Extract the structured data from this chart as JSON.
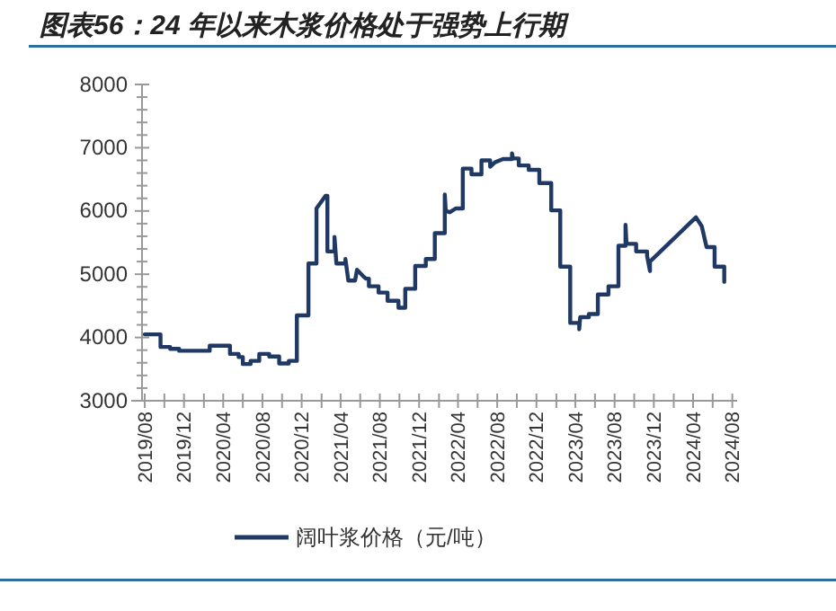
{
  "chart_data": {
    "type": "line",
    "title": "图表56：24 年以来木浆价格处于强势上行期",
    "series": [
      {
        "name": "阔叶浆价格（元/吨）",
        "color": "#1f3864",
        "x": [
          "2019-08-01",
          "2019-09-19",
          "2019-09-19",
          "2019-10-19",
          "2019-10-19",
          "2019-11-16",
          "2019-11-16",
          "2020-02-19",
          "2020-02-19",
          "2020-04-22",
          "2020-04-22",
          "2020-05-19",
          "2020-05-19",
          "2020-06-01",
          "2020-06-01",
          "2020-06-25",
          "2020-06-25",
          "2020-07-22",
          "2020-07-22",
          "2020-08-22",
          "2020-08-22",
          "2020-09-22",
          "2020-09-22",
          "2020-10-22",
          "2020-10-22",
          "2020-11-16",
          "2020-11-16",
          "2020-12-22",
          "2020-12-22",
          "2021-01-16",
          "2021-01-16",
          "2021-02-13",
          "2021-02-19",
          "2021-02-19",
          "2021-03-13",
          "2021-03-13",
          "2021-03-19",
          "2021-04-16",
          "2021-04-16",
          "2021-04-25",
          "2021-05-16",
          "2021-05-22",
          "2021-06-10",
          "2021-06-19",
          "2021-06-28",
          "2021-06-28",
          "2021-07-28",
          "2021-07-28",
          "2021-08-25",
          "2021-08-25",
          "2021-09-28",
          "2021-09-28",
          "2021-10-19",
          "2021-10-19",
          "2021-11-19",
          "2021-11-19",
          "2021-12-22",
          "2021-12-22",
          "2022-01-19",
          "2022-01-19",
          "2022-02-19",
          "2022-02-19",
          "2022-02-22",
          "2022-03-07",
          "2022-03-25",
          "2022-04-16",
          "2022-04-16",
          "2022-05-13",
          "2022-05-13",
          "2022-06-13",
          "2022-06-13",
          "2022-07-10",
          "2022-07-10",
          "2022-07-25",
          "2022-08-19",
          "2022-09-16",
          "2022-09-16",
          "2022-09-19",
          "2022-10-07",
          "2022-10-07",
          "2022-11-07",
          "2022-11-07",
          "2022-12-10",
          "2022-12-10",
          "2023-01-16",
          "2023-01-16",
          "2023-02-13",
          "2023-02-13",
          "2023-03-16",
          "2023-03-16",
          "2023-04-13",
          "2023-04-13",
          "2023-04-16",
          "2023-05-13",
          "2023-05-13",
          "2023-06-10",
          "2023-06-10",
          "2023-07-13",
          "2023-07-13",
          "2023-08-13",
          "2023-08-13",
          "2023-09-04",
          "2023-09-04",
          "2023-09-07",
          "2023-10-07",
          "2023-10-07",
          "2023-11-10",
          "2023-11-10",
          "2023-11-19",
          "2023-11-19",
          "2024-04-10",
          "2024-04-28",
          "2024-05-13",
          "2024-06-07",
          "2024-06-07",
          "2024-07-07",
          "2024-07-07"
        ],
        "values": [
          4050,
          4050,
          3850,
          3850,
          3820,
          3820,
          3790,
          3790,
          3870,
          3870,
          3740,
          3740,
          3690,
          3690,
          3580,
          3580,
          3630,
          3630,
          3740,
          3740,
          3700,
          3700,
          3590,
          3590,
          3630,
          3630,
          4350,
          4350,
          5170,
          5170,
          6040,
          6240,
          6240,
          5360,
          5360,
          5590,
          5170,
          5170,
          5240,
          4900,
          4900,
          5070,
          4970,
          4930,
          4930,
          4810,
          4810,
          4710,
          4710,
          4580,
          4580,
          4470,
          4470,
          4770,
          4770,
          5130,
          5130,
          5240,
          5240,
          5650,
          5650,
          6260,
          6000,
          5980,
          6040,
          6040,
          6670,
          6670,
          6580,
          6580,
          6800,
          6800,
          6700,
          6770,
          6820,
          6820,
          6910,
          6830,
          6830,
          6720,
          6720,
          6650,
          6650,
          6440,
          6440,
          6010,
          6010,
          5120,
          5120,
          4230,
          4230,
          4130,
          4320,
          4320,
          4370,
          4370,
          4680,
          4680,
          4810,
          4810,
          5450,
          5450,
          5780,
          5480,
          5480,
          5360,
          5360,
          5290,
          5050,
          5200,
          5900,
          5760,
          5430,
          5430,
          5120,
          5120,
          4880
        ]
      }
    ],
    "xlim": [
      "2019-06-20",
      "2024-08-16"
    ],
    "xticks": [
      {
        "value": "2019-08",
        "label": "2019/08"
      },
      {
        "value": "2019-10",
        "label": null
      },
      {
        "value": "2019-12",
        "label": "2019/12"
      },
      {
        "value": "2020-02",
        "label": null
      },
      {
        "value": "2020-04",
        "label": "2020/04"
      },
      {
        "value": "2020-06",
        "label": null
      },
      {
        "value": "2020-08",
        "label": "2020/08"
      },
      {
        "value": "2020-10",
        "label": null
      },
      {
        "value": "2020-12",
        "label": "2020/12"
      },
      {
        "value": "2021-02",
        "label": null
      },
      {
        "value": "2021-04",
        "label": "2021/04"
      },
      {
        "value": "2021-06",
        "label": null
      },
      {
        "value": "2021-08",
        "label": "2021/08"
      },
      {
        "value": "2021-10",
        "label": null
      },
      {
        "value": "2021-12",
        "label": "2021/12"
      },
      {
        "value": "2022-02",
        "label": null
      },
      {
        "value": "2022-04",
        "label": "2022/04"
      },
      {
        "value": "2022-06",
        "label": null
      },
      {
        "value": "2022-08",
        "label": "2022/08"
      },
      {
        "value": "2022-10",
        "label": null
      },
      {
        "value": "2022-12",
        "label": "2022/12"
      },
      {
        "value": "2023-02",
        "label": null
      },
      {
        "value": "2023-04",
        "label": "2023/04"
      },
      {
        "value": "2023-06",
        "label": null
      },
      {
        "value": "2023-08",
        "label": "2023/08"
      },
      {
        "value": "2023-10",
        "label": null
      },
      {
        "value": "2023-12",
        "label": "2023/12"
      },
      {
        "value": "2024-02",
        "label": null
      },
      {
        "value": "2024-04",
        "label": "2024/04"
      },
      {
        "value": "2024-06",
        "label": null
      },
      {
        "value": "2024-08",
        "label": "2024/08"
      }
    ],
    "ylim": [
      3000,
      8000
    ],
    "yticks": [
      3000,
      {
        "value": 3200,
        "label": null
      },
      {
        "value": 3400,
        "label": null
      },
      {
        "value": 3600,
        "label": null
      },
      {
        "value": 3800,
        "label": null
      },
      4000,
      {
        "value": 4200,
        "label": null
      },
      {
        "value": 4400,
        "label": null
      },
      {
        "value": 4600,
        "label": null
      },
      {
        "value": 4800,
        "label": null
      },
      5000,
      {
        "value": 5200,
        "label": null
      },
      {
        "value": 5400,
        "label": null
      },
      {
        "value": 5600,
        "label": null
      },
      {
        "value": 5800,
        "label": null
      },
      6000,
      {
        "value": 6200,
        "label": null
      },
      {
        "value": 6400,
        "label": null
      },
      {
        "value": 6600,
        "label": null
      },
      {
        "value": 6800,
        "label": null
      },
      7000,
      {
        "value": 7200,
        "label": null
      },
      {
        "value": 7400,
        "label": null
      },
      {
        "value": 7600,
        "label": null
      },
      {
        "value": 7800,
        "label": null
      },
      8000
    ],
    "legend": "bottom",
    "grid": false,
    "line_style": "solid",
    "marker": "none"
  }
}
